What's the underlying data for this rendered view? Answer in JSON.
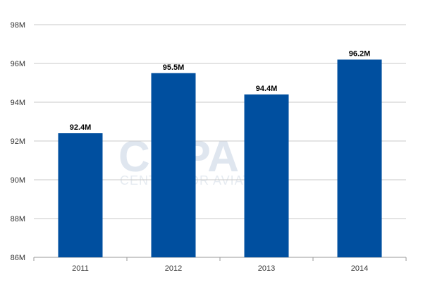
{
  "watermark": {
    "logo_text": "CAPA",
    "tagline": "CENTRE FOR AVIATION"
  },
  "chart_data": {
    "type": "bar",
    "title": "",
    "xlabel": "",
    "ylabel": "",
    "categories": [
      "2011",
      "2012",
      "2013",
      "2014"
    ],
    "values": [
      92.4,
      95.5,
      94.4,
      96.2
    ],
    "data_labels": [
      "92.4M",
      "95.5M",
      "94.4M",
      "96.2M"
    ],
    "ylim": [
      86,
      98
    ],
    "yticks": [
      {
        "value": 86,
        "label": "86M"
      },
      {
        "value": 88,
        "label": "88M"
      },
      {
        "value": 90,
        "label": "90M"
      },
      {
        "value": 92,
        "label": "92M"
      },
      {
        "value": 94,
        "label": "94M"
      },
      {
        "value": 96,
        "label": "96M"
      },
      {
        "value": 98,
        "label": "98M"
      }
    ],
    "grid": true,
    "legend": "none",
    "bar_color": "#004f9f",
    "grid_color": "#c8c8c8"
  }
}
